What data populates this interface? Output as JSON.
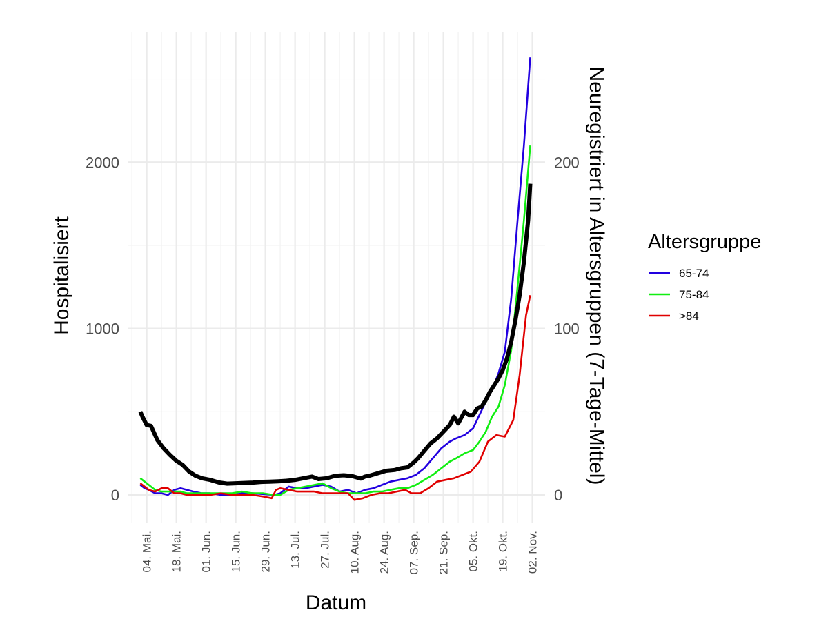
{
  "chart_data": {
    "type": "line",
    "x_is_date": true,
    "xlabel": "Datum",
    "ylabel_left": "Hospitalisiert",
    "ylabel_right": "Neuregistriert in Altersgruppen (7-Tage-Mittel)",
    "x_range": [
      "2020-04-25",
      "2020-11-08"
    ],
    "ylim_left": [
      -170,
      2780
    ],
    "ylim_right": [
      -17,
      278
    ],
    "y_ticks_left": [
      0,
      1000,
      2000
    ],
    "y_ticks_right": [
      0,
      100,
      200
    ],
    "x_ticks": [
      {
        "date": "2020-05-04",
        "label": "04. Mai."
      },
      {
        "date": "2020-05-18",
        "label": "18. Mai."
      },
      {
        "date": "2020-06-01",
        "label": "01. Jun."
      },
      {
        "date": "2020-06-15",
        "label": "15. Jun."
      },
      {
        "date": "2020-06-29",
        "label": "29. Jun."
      },
      {
        "date": "2020-07-13",
        "label": "13. Jul."
      },
      {
        "date": "2020-07-27",
        "label": "27. Jul."
      },
      {
        "date": "2020-08-10",
        "label": "10. Aug."
      },
      {
        "date": "2020-08-24",
        "label": "24. Aug."
      },
      {
        "date": "2020-09-07",
        "label": "07. Sep."
      },
      {
        "date": "2020-09-21",
        "label": "21. Sep."
      },
      {
        "date": "2020-10-05",
        "label": "05. Okt."
      },
      {
        "date": "2020-10-19",
        "label": "19. Okt."
      },
      {
        "date": "2020-11-02",
        "label": "02. Nov."
      }
    ],
    "grid": true,
    "legend": {
      "title": "Altersgruppe",
      "position": "right"
    },
    "hospitalized": {
      "axis": "left",
      "color": "#000000",
      "x": [
        "2020-05-01",
        "2020-05-02",
        "2020-05-04",
        "2020-05-06",
        "2020-05-09",
        "2020-05-12",
        "2020-05-15",
        "2020-05-18",
        "2020-05-21",
        "2020-05-24",
        "2020-05-27",
        "2020-05-30",
        "2020-06-03",
        "2020-06-07",
        "2020-06-11",
        "2020-06-15",
        "2020-06-19",
        "2020-06-23",
        "2020-06-27",
        "2020-07-01",
        "2020-07-05",
        "2020-07-09",
        "2020-07-13",
        "2020-07-17",
        "2020-07-21",
        "2020-07-24",
        "2020-07-28",
        "2020-08-01",
        "2020-08-05",
        "2020-08-09",
        "2020-08-13",
        "2020-08-15",
        "2020-08-17",
        "2020-08-21",
        "2020-08-25",
        "2020-08-29",
        "2020-09-01",
        "2020-09-04",
        "2020-09-07",
        "2020-09-09",
        "2020-09-12",
        "2020-09-15",
        "2020-09-18",
        "2020-09-21",
        "2020-09-24",
        "2020-09-26",
        "2020-09-28",
        "2020-10-01",
        "2020-10-03",
        "2020-10-05",
        "2020-10-07",
        "2020-10-09",
        "2020-10-11",
        "2020-10-13",
        "2020-10-15",
        "2020-10-17",
        "2020-10-19",
        "2020-10-21",
        "2020-10-23",
        "2020-10-25",
        "2020-10-27",
        "2020-10-29",
        "2020-10-31",
        "2020-11-01"
      ],
      "values": [
        500,
        470,
        420,
        415,
        330,
        280,
        240,
        205,
        180,
        140,
        115,
        100,
        90,
        75,
        68,
        70,
        72,
        74,
        78,
        80,
        82,
        85,
        90,
        100,
        110,
        95,
        100,
        115,
        118,
        113,
        98,
        110,
        115,
        130,
        145,
        150,
        160,
        165,
        195,
        220,
        265,
        310,
        340,
        380,
        420,
        470,
        430,
        500,
        480,
        480,
        520,
        530,
        570,
        620,
        660,
        700,
        750,
        820,
        920,
        1050,
        1200,
        1400,
        1650,
        1870
      ]
    },
    "series": [
      {
        "name": "65-74",
        "axis": "right",
        "color": "#2200e0",
        "x": [
          "2020-05-01",
          "2020-05-03",
          "2020-05-05",
          "2020-05-08",
          "2020-05-11",
          "2020-05-14",
          "2020-05-17",
          "2020-05-20",
          "2020-05-23",
          "2020-05-26",
          "2020-05-30",
          "2020-06-03",
          "2020-06-08",
          "2020-06-13",
          "2020-06-18",
          "2020-06-23",
          "2020-06-28",
          "2020-07-03",
          "2020-07-06",
          "2020-07-10",
          "2020-07-14",
          "2020-07-18",
          "2020-07-22",
          "2020-07-26",
          "2020-07-30",
          "2020-08-03",
          "2020-08-07",
          "2020-08-11",
          "2020-08-15",
          "2020-08-19",
          "2020-08-23",
          "2020-08-27",
          "2020-08-31",
          "2020-09-04",
          "2020-09-08",
          "2020-09-12",
          "2020-09-16",
          "2020-09-20",
          "2020-09-24",
          "2020-09-27",
          "2020-10-01",
          "2020-10-05",
          "2020-10-08",
          "2020-10-11",
          "2020-10-14",
          "2020-10-17",
          "2020-10-20",
          "2020-10-23",
          "2020-10-26",
          "2020-10-29",
          "2020-11-01"
        ],
        "values": [
          6,
          4,
          3,
          1,
          1,
          0,
          3,
          4,
          3,
          2,
          1,
          1,
          0,
          0,
          1,
          1,
          0.5,
          0,
          1,
          5,
          4,
          4,
          5,
          6,
          5,
          2,
          3,
          1,
          3,
          4,
          6,
          8,
          9,
          10,
          12,
          16,
          22,
          28,
          32,
          34,
          36,
          40,
          48,
          56,
          63,
          73,
          86,
          118,
          165,
          210,
          263
        ]
      },
      {
        "name": "75-84",
        "axis": "right",
        "color": "#11ee11",
        "x": [
          "2020-05-01",
          "2020-05-03",
          "2020-05-05",
          "2020-05-08",
          "2020-05-11",
          "2020-05-14",
          "2020-05-17",
          "2020-05-20",
          "2020-05-23",
          "2020-05-26",
          "2020-05-30",
          "2020-06-03",
          "2020-06-08",
          "2020-06-13",
          "2020-06-18",
          "2020-06-23",
          "2020-06-28",
          "2020-07-03",
          "2020-07-06",
          "2020-07-10",
          "2020-07-14",
          "2020-07-18",
          "2020-07-22",
          "2020-07-26",
          "2020-07-30",
          "2020-08-03",
          "2020-08-07",
          "2020-08-11",
          "2020-08-15",
          "2020-08-19",
          "2020-08-23",
          "2020-08-27",
          "2020-08-31",
          "2020-09-04",
          "2020-09-08",
          "2020-09-12",
          "2020-09-16",
          "2020-09-20",
          "2020-09-24",
          "2020-09-27",
          "2020-10-01",
          "2020-10-05",
          "2020-10-08",
          "2020-10-11",
          "2020-10-14",
          "2020-10-17",
          "2020-10-20",
          "2020-10-23",
          "2020-10-26",
          "2020-10-29",
          "2020-11-01"
        ],
        "values": [
          10,
          8,
          6,
          3,
          2,
          2,
          2,
          2,
          1,
          1,
          1,
          1,
          1,
          1,
          2,
          1,
          1,
          0,
          0,
          3,
          4,
          5,
          6,
          7,
          4,
          2,
          1,
          1,
          1,
          2,
          2,
          3,
          4,
          4,
          6,
          9,
          12,
          16,
          20,
          22,
          25,
          27,
          32,
          38,
          47,
          53,
          66,
          87,
          125,
          165,
          210
        ]
      },
      {
        "name": ">84",
        "axis": "right",
        "color": "#e00000",
        "x": [
          "2020-05-01",
          "2020-05-03",
          "2020-05-05",
          "2020-05-08",
          "2020-05-11",
          "2020-05-14",
          "2020-05-17",
          "2020-05-20",
          "2020-05-23",
          "2020-05-26",
          "2020-05-30",
          "2020-06-03",
          "2020-06-08",
          "2020-06-13",
          "2020-06-18",
          "2020-06-23",
          "2020-06-28",
          "2020-07-02",
          "2020-07-04",
          "2020-07-06",
          "2020-07-10",
          "2020-07-14",
          "2020-07-18",
          "2020-07-22",
          "2020-07-26",
          "2020-07-30",
          "2020-08-03",
          "2020-08-07",
          "2020-08-10",
          "2020-08-14",
          "2020-08-18",
          "2020-08-22",
          "2020-08-26",
          "2020-08-30",
          "2020-09-03",
          "2020-09-06",
          "2020-09-10",
          "2020-09-14",
          "2020-09-18",
          "2020-09-22",
          "2020-09-26",
          "2020-09-30",
          "2020-10-04",
          "2020-10-08",
          "2020-10-12",
          "2020-10-16",
          "2020-10-20",
          "2020-10-24",
          "2020-10-27",
          "2020-10-30",
          "2020-11-01"
        ],
        "values": [
          7,
          5,
          3,
          2,
          4,
          4,
          1,
          1,
          0,
          0,
          0,
          0,
          1,
          0,
          0,
          0,
          -1,
          -2,
          3,
          4,
          3,
          2,
          2,
          2,
          1,
          1,
          1,
          1,
          -3,
          -2,
          0,
          1,
          1,
          2,
          3,
          1,
          1,
          4,
          8,
          9,
          10,
          12,
          14,
          20,
          32,
          36,
          35,
          45,
          72,
          108,
          120
        ]
      }
    ]
  }
}
